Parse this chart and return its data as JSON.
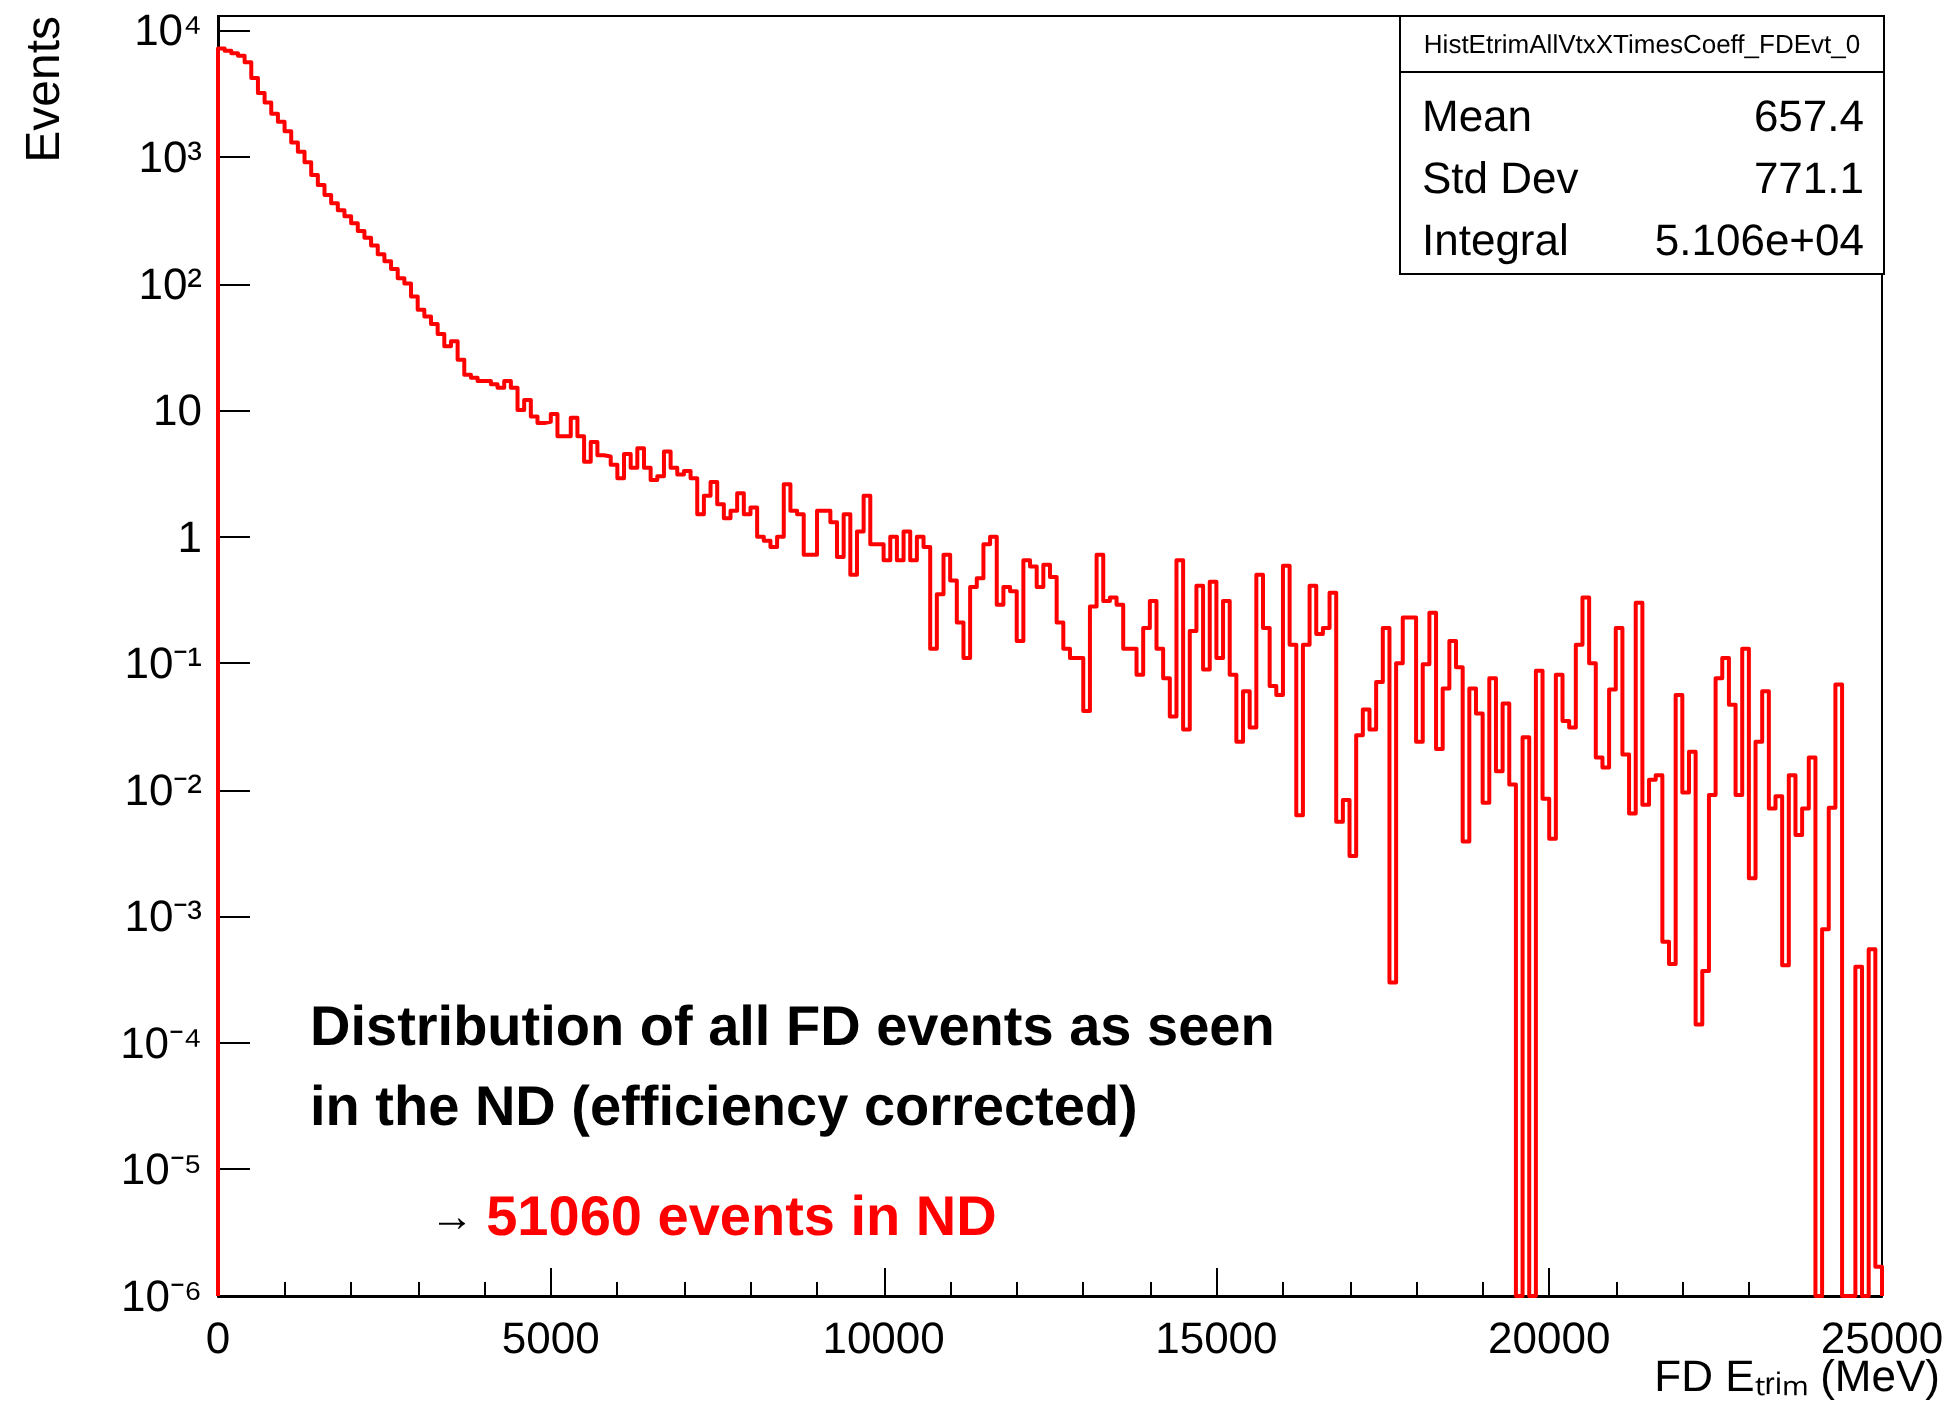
{
  "chart_data": {
    "type": "histogram",
    "xlabel": "FD Eₜᵣᵢₘ (MeV)",
    "ylabel": "Events",
    "color": "#ff0000",
    "log": "y",
    "grid": false,
    "xlim": [
      0,
      25000
    ],
    "xticks": [
      0,
      5000,
      10000,
      15000,
      20000,
      25000
    ],
    "ylim": [
      1e-06,
      13000
    ],
    "yticks": [
      {
        "value": 1e-06,
        "label": "10⁻⁶"
      },
      {
        "value": 1e-05,
        "label": "10⁻⁵"
      },
      {
        "value": 0.0001,
        "label": "10⁻⁴"
      },
      {
        "value": 0.001,
        "label": "10⁻³"
      },
      {
        "value": 0.01,
        "label": "10⁻²"
      },
      {
        "value": 0.1,
        "label": "10⁻¹"
      },
      1,
      10,
      {
        "value": 100,
        "label": "10²"
      },
      {
        "value": 1000,
        "label": "10³"
      },
      {
        "value": 10000,
        "label": "10⁴"
      }
    ],
    "annotations": [
      "HistEtrimAllVtxXTimesCoeff_FDEvt_0",
      "Mean",
      "657.4",
      "Std Dev",
      "771.1",
      "Integral",
      "5.106e+04",
      "Distribution of all FD events as seen\nin the ND (efficiency corrected)",
      "→ 51060 events in ND"
    ],
    "bins": [
      0,
      100,
      200,
      300,
      400,
      500,
      600,
      700,
      800,
      900,
      1000,
      1100,
      1200,
      1300,
      1400,
      1500,
      1600,
      1700,
      1800,
      1900,
      2000,
      2100,
      2200,
      2300,
      2400,
      2500,
      2600,
      2700,
      2800,
      2900,
      3000,
      3100,
      3200,
      3300,
      3400,
      3500,
      3600,
      3700,
      3800,
      3900,
      4000,
      4100,
      4200,
      4300,
      4400,
      4500,
      4600,
      4700,
      4800,
      4900,
      5000,
      5100,
      5200,
      5300,
      5400,
      5500,
      5600,
      5700,
      5800,
      5900,
      6000,
      6100,
      6200,
      6300,
      6400,
      6500,
      6600,
      6700,
      6800,
      6900,
      7000,
      7100,
      7200,
      7300,
      7400,
      7500,
      7600,
      7700,
      7800,
      7900,
      8000,
      8100,
      8200,
      8300,
      8400,
      8500,
      8600,
      8700,
      8800,
      8900,
      9000,
      9100,
      9200,
      9300,
      9400,
      9500,
      9600,
      9700,
      9800,
      9900,
      10000,
      10100,
      10200,
      10300,
      10400,
      10500,
      10600,
      10700,
      10800,
      10900,
      11000,
      11100,
      11200,
      11300,
      11400,
      11500,
      11600,
      11700,
      11800,
      11900,
      12000,
      12100,
      12200,
      12300,
      12400,
      12500,
      12600,
      12700,
      12800,
      12900,
      13000,
      13100,
      13200,
      13300,
      13400,
      13500,
      13600,
      13700,
      13800,
      13900,
      14000,
      14100,
      14200,
      14300,
      14400,
      14500,
      14600,
      14700,
      14800,
      14900,
      15000,
      15100,
      15200,
      15300,
      15400,
      15500,
      15600,
      15700,
      15800,
      15900,
      16000,
      16100,
      16200,
      16300,
      16400,
      16500,
      16600,
      16700,
      16800,
      16900,
      17000,
      17100,
      17200,
      17300,
      17400,
      17500,
      17600,
      17700,
      17800,
      17900,
      18000,
      18100,
      18200,
      18300,
      18400,
      18500,
      18600,
      18700,
      18800,
      18900,
      19000,
      19100,
      19200,
      19300,
      19400,
      19500,
      19600,
      19700,
      19800,
      19900,
      20000,
      20100,
      20200,
      20300,
      20400,
      20500,
      20600,
      20700,
      20800,
      20900,
      21000,
      21100,
      21200,
      21300,
      21400,
      21500,
      21600,
      21700,
      21800,
      21900,
      22000,
      22100,
      22200,
      22300,
      22400,
      22500,
      22600,
      22700,
      22800,
      22900,
      23000,
      23100,
      23200,
      23300,
      23400,
      23500,
      23600,
      23700,
      23800,
      23900,
      24000,
      24100,
      24200,
      24300,
      24400,
      24500,
      24600,
      24700,
      24800,
      24900,
      25000
    ],
    "values": [
      7200,
      6900,
      6600,
      6300,
      5600,
      4200,
      3200,
      2700,
      2200,
      1900,
      1600,
      1300,
      1100,
      910,
      720,
      600,
      500,
      430,
      380,
      340,
      300,
      260,
      230,
      200,
      170,
      150,
      130,
      110,
      100,
      79,
      62,
      55,
      48,
      40,
      32,
      35,
      25,
      19,
      18,
      17,
      17,
      16,
      15,
      17,
      15,
      10,
      12,
      8.9,
      7.9,
      8.1,
      9.3,
      6.2,
      6.2,
      8.7,
      6.2,
      3.9,
      5.6,
      4.4,
      4.3,
      3.7,
      2.9,
      4.5,
      3.5,
      5.0,
      3.5,
      2.8,
      3.0,
      4.7,
      3.5,
      3.1,
      3.3,
      2.9,
      1.5,
      2.1,
      2.7,
      1.8,
      1.4,
      1.6,
      2.2,
      1.5,
      1.7,
      1.0,
      0.93,
      0.83,
      1.0,
      2.6,
      1.6,
      1.5,
      0.72,
      0.72,
      1.6,
      1.6,
      1.3,
      0.69,
      1.5,
      0.5,
      1.1,
      2.1,
      0.87,
      0.87,
      0.65,
      1.0,
      0.65,
      1.1,
      0.65,
      1.0,
      0.83,
      0.13,
      0.35,
      0.72,
      0.45,
      0.21,
      0.11,
      0.4,
      0.47,
      0.87,
      1.0,
      0.29,
      0.4,
      0.37,
      0.15,
      0.65,
      0.58,
      0.4,
      0.6,
      0.48,
      0.21,
      0.13,
      0.11,
      0.11,
      0.042,
      0.28,
      0.72,
      0.31,
      0.33,
      0.29,
      0.13,
      0.13,
      0.081,
      0.19,
      0.31,
      0.13,
      0.076,
      0.038,
      0.65,
      0.03,
      0.18,
      0.41,
      0.089,
      0.44,
      0.11,
      0.31,
      0.081,
      0.024,
      0.06,
      0.031,
      0.5,
      0.19,
      0.066,
      0.056,
      0.59,
      0.14,
      0.0063,
      0.14,
      0.41,
      0.17,
      0.19,
      0.36,
      0.0056,
      0.0083,
      0.003,
      0.027,
      0.043,
      0.03,
      0.071,
      0.19,
      0.0003,
      0.1,
      0.23,
      0.23,
      0.024,
      0.098,
      0.25,
      0.021,
      0.063,
      0.15,
      0.093,
      0.0039,
      0.063,
      0.04,
      0.0079,
      0.076,
      0.014,
      0.048,
      0.011,
      null,
      0.026,
      null,
      0.087,
      0.0085,
      0.0041,
      0.081,
      0.035,
      0.031,
      0.14,
      0.33,
      0.1,
      0.018,
      0.015,
      0.062,
      0.19,
      0.019,
      0.0065,
      0.3,
      0.0076,
      0.012,
      0.013,
      0.00063,
      0.00042,
      0.056,
      0.0095,
      0.02,
      0.00014,
      0.00037,
      0.0091,
      0.076,
      0.11,
      0.047,
      0.0091,
      0.13,
      0.002,
      0.024,
      0.06,
      0.0071,
      0.0089,
      0.00041,
      0.013,
      0.0044,
      0.0071,
      0.018,
      null,
      0.00079,
      0.0072,
      0.068,
      null,
      null,
      0.0004,
      null,
      0.00055,
      1.7e-06
    ]
  }
}
